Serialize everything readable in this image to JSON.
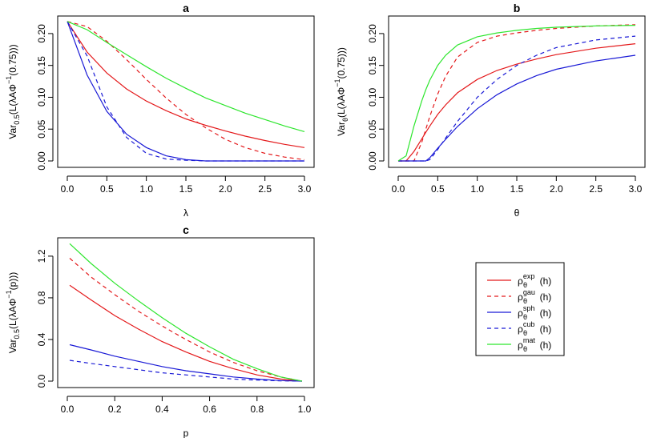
{
  "legend": {
    "entries": [
      {
        "name": "exp",
        "color": "#e41a1c",
        "dash": false,
        "symbol": "ρ",
        "sub": "θ",
        "sup": "exp",
        "suffix": "(h)"
      },
      {
        "name": "gau",
        "color": "#e41a1c",
        "dash": true,
        "symbol": "ρ",
        "sub": "θ",
        "sup": "gau",
        "suffix": "(h)"
      },
      {
        "name": "sph",
        "color": "#1a1ad6",
        "dash": false,
        "symbol": "ρ",
        "sub": "θ",
        "sup": "sph",
        "suffix": "(h)"
      },
      {
        "name": "cub",
        "color": "#1a1ad6",
        "dash": true,
        "symbol": "ρ",
        "sub": "θ",
        "sup": "cub",
        "suffix": "(h)"
      },
      {
        "name": "mat",
        "color": "#2ee62e",
        "dash": false,
        "symbol": "ρ",
        "sub": "θ",
        "sup": "mat",
        "suffix": "(h)"
      }
    ]
  },
  "chart_data": [
    {
      "type": "line",
      "title": "a",
      "xlabel": "λ",
      "ylabel": {
        "pre": "Var",
        "sub": "0.5",
        "mid": "(L(λAΦ",
        "sup": "−1",
        "post": "(0.75)))"
      },
      "xlim": [
        0,
        3
      ],
      "ylim": [
        0,
        0.22
      ],
      "xticks": [
        "0.0",
        "0.5",
        "1.0",
        "1.5",
        "2.0",
        "2.5",
        "3.0"
      ],
      "yticks": [
        "0.00",
        "0.05",
        "0.10",
        "0.15",
        "0.20"
      ],
      "x": [
        0.0,
        0.25,
        0.5,
        0.75,
        1.0,
        1.25,
        1.5,
        1.75,
        2.0,
        2.25,
        2.5,
        2.75,
        3.0
      ],
      "series": [
        {
          "name": "exp",
          "values": [
            0.219,
            0.171,
            0.138,
            0.113,
            0.094,
            0.079,
            0.066,
            0.056,
            0.047,
            0.039,
            0.032,
            0.026,
            0.021
          ]
        },
        {
          "name": "gau",
          "values": [
            0.219,
            0.211,
            0.188,
            0.159,
            0.128,
            0.099,
            0.073,
            0.052,
            0.034,
            0.021,
            0.012,
            0.006,
            0.002
          ]
        },
        {
          "name": "sph",
          "values": [
            0.219,
            0.135,
            0.078,
            0.042,
            0.021,
            0.008,
            0.002,
            0.0,
            0.0,
            0.0,
            0.0,
            0.0,
            0.0
          ]
        },
        {
          "name": "cub",
          "values": [
            0.219,
            0.165,
            0.085,
            0.037,
            0.012,
            0.003,
            0.001,
            0.0,
            0.0,
            0.0,
            0.0,
            0.0,
            0.0
          ]
        },
        {
          "name": "mat",
          "values": [
            0.219,
            0.206,
            0.186,
            0.167,
            0.148,
            0.13,
            0.114,
            0.099,
            0.087,
            0.075,
            0.065,
            0.055,
            0.046
          ]
        }
      ]
    },
    {
      "type": "line",
      "title": "b",
      "xlabel": "θ",
      "ylabel": {
        "pre": "Var",
        "sub": "θ",
        "mid": "(L(λAΦ",
        "sup": "−1",
        "post": "(0.75)))"
      },
      "xlim": [
        0,
        3
      ],
      "ylim": [
        0,
        0.22
      ],
      "xticks": [
        "0.0",
        "0.5",
        "1.0",
        "1.5",
        "2.0",
        "2.5",
        "3.0"
      ],
      "yticks": [
        "0.00",
        "0.05",
        "0.10",
        "0.15",
        "0.20"
      ],
      "x": [
        0.0,
        0.1,
        0.2,
        0.3,
        0.35,
        0.4,
        0.5,
        0.6,
        0.75,
        1.0,
        1.25,
        1.5,
        1.75,
        2.0,
        2.5,
        3.0
      ],
      "series": [
        {
          "name": "exp",
          "values": [
            0.0,
            0.0,
            0.015,
            0.035,
            0.045,
            0.055,
            0.073,
            0.088,
            0.107,
            0.128,
            0.142,
            0.152,
            0.16,
            0.167,
            0.177,
            0.184
          ]
        },
        {
          "name": "gau",
          "values": [
            0.0,
            0.0,
            0.0,
            0.03,
            0.05,
            0.07,
            0.105,
            0.133,
            0.163,
            0.186,
            0.196,
            0.201,
            0.205,
            0.208,
            0.212,
            0.214
          ]
        },
        {
          "name": "sph",
          "values": [
            0.0,
            0.0,
            0.0,
            0.0,
            0.0,
            0.005,
            0.02,
            0.034,
            0.054,
            0.082,
            0.104,
            0.121,
            0.134,
            0.144,
            0.157,
            0.166
          ]
        },
        {
          "name": "cub",
          "values": [
            0.0,
            0.0,
            0.0,
            0.0,
            0.0,
            0.002,
            0.018,
            0.036,
            0.062,
            0.1,
            0.128,
            0.15,
            0.166,
            0.178,
            0.19,
            0.196
          ]
        },
        {
          "name": "mat",
          "values": [
            0.0,
            0.008,
            0.055,
            0.095,
            0.112,
            0.127,
            0.15,
            0.166,
            0.182,
            0.195,
            0.201,
            0.205,
            0.208,
            0.21,
            0.212,
            0.213
          ]
        }
      ]
    },
    {
      "type": "line",
      "title": "c",
      "xlabel": "p",
      "ylabel": {
        "pre": "Var",
        "sub": "0.5",
        "mid": "(L(λAΦ",
        "sup": "−1",
        "post": "(p)))"
      },
      "xlim": [
        0,
        1
      ],
      "ylim": [
        0,
        1.33
      ],
      "xticks": [
        "0.0",
        "0.2",
        "0.4",
        "0.6",
        "0.8",
        "1.0"
      ],
      "yticks": [
        "0.0",
        "0.4",
        "0.8",
        "1.2"
      ],
      "ytick_values": [
        0.0,
        0.4,
        0.8,
        1.2
      ],
      "x": [
        0.01,
        0.1,
        0.2,
        0.3,
        0.4,
        0.5,
        0.6,
        0.7,
        0.8,
        0.9,
        0.99
      ],
      "series": [
        {
          "name": "exp",
          "values": [
            0.92,
            0.78,
            0.63,
            0.5,
            0.38,
            0.28,
            0.19,
            0.12,
            0.06,
            0.02,
            0.0
          ]
        },
        {
          "name": "gau",
          "values": [
            1.18,
            1.0,
            0.83,
            0.67,
            0.53,
            0.4,
            0.28,
            0.18,
            0.1,
            0.04,
            0.0
          ]
        },
        {
          "name": "sph",
          "values": [
            0.35,
            0.3,
            0.24,
            0.19,
            0.14,
            0.1,
            0.07,
            0.04,
            0.02,
            0.005,
            0.0
          ]
        },
        {
          "name": "cub",
          "values": [
            0.2,
            0.17,
            0.14,
            0.11,
            0.08,
            0.06,
            0.04,
            0.02,
            0.01,
            0.003,
            0.0
          ]
        },
        {
          "name": "mat",
          "values": [
            1.32,
            1.13,
            0.94,
            0.77,
            0.61,
            0.46,
            0.33,
            0.21,
            0.12,
            0.04,
            0.0
          ]
        }
      ]
    }
  ]
}
